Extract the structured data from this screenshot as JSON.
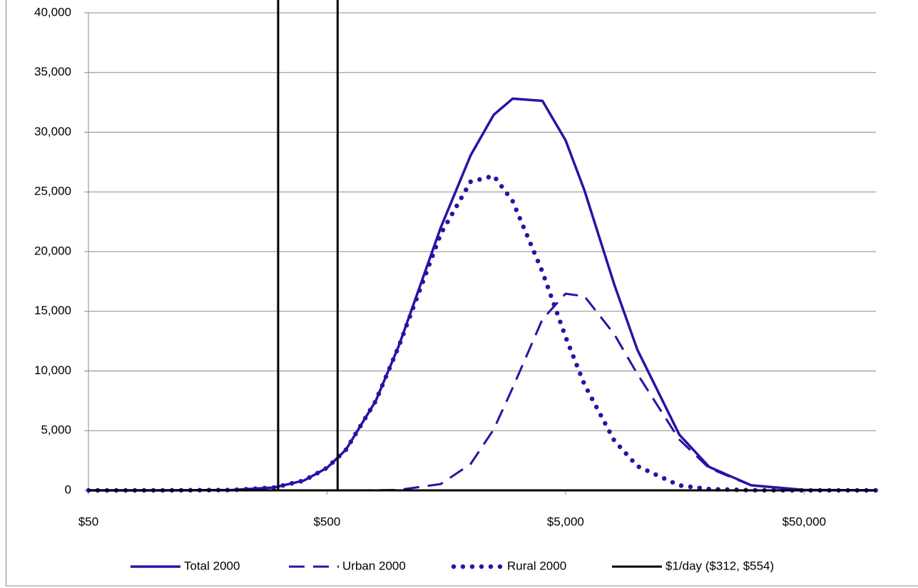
{
  "chart_data": {
    "type": "line",
    "x_scale": "log",
    "x": [
      50,
      100,
      200,
      300,
      400,
      500,
      600,
      800,
      1000,
      1500,
      2000,
      2500,
      3000,
      4000,
      5000,
      6000,
      8000,
      10000,
      15000,
      20000,
      30000,
      50000,
      100000
    ],
    "series": [
      {
        "name": "Total 2000",
        "color": "#2614a6",
        "style": "solid",
        "values": [
          0,
          0,
          30,
          238,
          822,
          1885,
          3400,
          7486,
          12108,
          22030,
          28060,
          31460,
          32810,
          32630,
          29330,
          25130,
          17250,
          11780,
          4660,
          1965,
          428,
          37,
          0
        ]
      },
      {
        "name": "Urban 2000",
        "color": "#2614a6",
        "style": "dashed",
        "values": [
          0,
          0,
          0,
          0,
          0,
          0,
          0,
          6,
          38,
          530,
          2210,
          5110,
          8580,
          14330,
          16470,
          16260,
          13080,
          9750,
          4250,
          1860,
          417,
          37,
          0
        ]
      },
      {
        "name": "Rural 2000",
        "color": "#2614a6",
        "style": "dotted",
        "values": [
          0,
          0,
          30,
          238,
          822,
          1885,
          3400,
          7480,
          12070,
          21500,
          25850,
          26350,
          24230,
          18300,
          12860,
          8870,
          4170,
          2030,
          412,
          105,
          11,
          0,
          0
        ]
      }
    ],
    "vlines": {
      "name": "$1/day ($312, $554)",
      "color": "#000000",
      "x": [
        312,
        554
      ]
    },
    "xlim": [
      50,
      100000
    ],
    "xticks": [
      {
        "value": 50,
        "label": "$50"
      },
      {
        "value": 500,
        "label": "$500"
      },
      {
        "value": 5000,
        "label": "$5,000"
      },
      {
        "value": 50000,
        "label": "$50,000"
      }
    ],
    "ylim": [
      0,
      40000
    ],
    "yticks": [
      0,
      {
        "value": 5000,
        "label": "5,000"
      },
      {
        "value": 10000,
        "label": "10,000"
      },
      {
        "value": 15000,
        "label": "15,000"
      },
      {
        "value": 20000,
        "label": "20,000"
      },
      {
        "value": 25000,
        "label": "25,000"
      },
      {
        "value": 30000,
        "label": "30,000"
      },
      {
        "value": 35000,
        "label": "35,000"
      },
      {
        "value": 40000,
        "label": "40,000"
      }
    ],
    "grid": true,
    "legend": "bottom"
  }
}
